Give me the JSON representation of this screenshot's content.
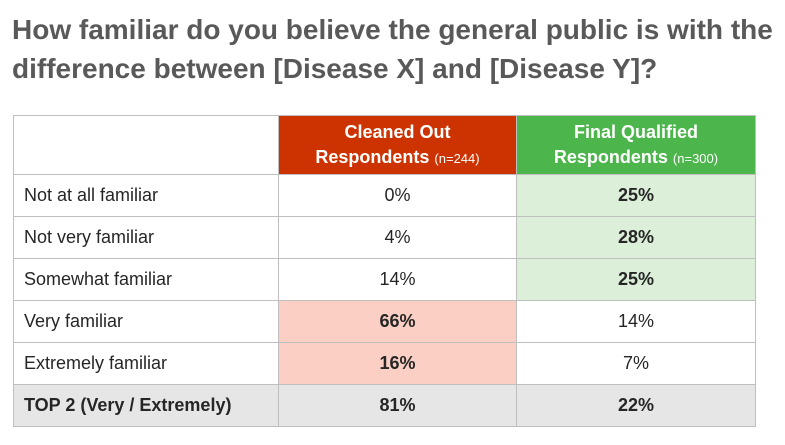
{
  "title": "How familiar do you believe the general public is with the difference between [Disease X] and [Disease Y]?",
  "table": {
    "headers": [
      {
        "label": "",
        "n": ""
      },
      {
        "label_line1": "Cleaned Out",
        "label_line2": "Respondents",
        "n": "(n=244)"
      },
      {
        "label_line1": "Final Qualified",
        "label_line2": "Respondents",
        "n": "(n=300)"
      }
    ],
    "rows": [
      {
        "label": "Not at all familiar",
        "cleaned": "0%",
        "final": "25%"
      },
      {
        "label": "Not very familiar",
        "cleaned": "4%",
        "final": "28%"
      },
      {
        "label": "Somewhat familiar",
        "cleaned": "14%",
        "final": "25%"
      },
      {
        "label": "Very familiar",
        "cleaned": "66%",
        "final": "14%"
      },
      {
        "label": "Extremely familiar",
        "cleaned": "16%",
        "final": "7%"
      }
    ],
    "total": {
      "label": "TOP 2 (Very / Extremely)",
      "cleaned": "81%",
      "final": "22%"
    }
  },
  "colors": {
    "cleaned_header": "#cc3300",
    "final_header": "#4cb54c",
    "green_highlight": "#dcefd9",
    "red_highlight": "#fbcfc3",
    "total_row": "#e6e6e6"
  }
}
